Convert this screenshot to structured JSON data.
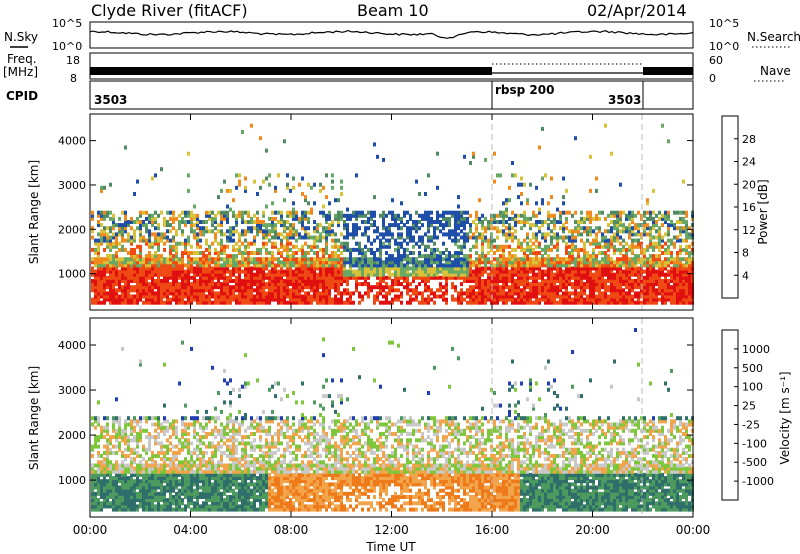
{
  "header": {
    "station": "Clyde River (fitACF)",
    "beam": "Beam 10",
    "date": "02/Apr/2014"
  },
  "panels": {
    "nsky_label": "N.Sky",
    "nsky_ticks": [
      "10^5",
      "10^0"
    ],
    "nsearch_label": "N.Search",
    "nsearch_ticks": [
      "10^5",
      "10^0"
    ],
    "freq_label_line1": "Freq.",
    "freq_label_line2": "[MHz]",
    "freq_ticks": [
      "18",
      "8"
    ],
    "nave_label": "Nave",
    "nave_ticks": [
      "60",
      "0"
    ],
    "cpid_label": "CPID",
    "cpid_segments": [
      {
        "label": "3503",
        "start_hour": 0,
        "end_hour": 16
      },
      {
        "label": "rbsp 200",
        "start_hour": 16,
        "end_hour": 22
      },
      {
        "label": "3503",
        "start_hour": 22,
        "end_hour": 24
      }
    ]
  },
  "chart_data": [
    {
      "type": "heatmap",
      "name": "Power",
      "ylabel": "Slant Range [km]",
      "yticks": [
        "1000",
        "2000",
        "3000",
        "4000"
      ],
      "ylim": [
        180,
        4600
      ],
      "colorbar": {
        "label": "Power [dB]",
        "ticks": [
          "4",
          "8",
          "12",
          "16",
          "20",
          "24",
          "28"
        ],
        "range": [
          0,
          32
        ],
        "colors": [
          "#1b1bd6",
          "#1f4ea8",
          "#4f8a62",
          "#68a865",
          "#d8c23a",
          "#f08a1c",
          "#f04a14",
          "#e01010"
        ]
      }
    },
    {
      "type": "heatmap",
      "name": "Velocity",
      "ylabel": "Slant Range [km]",
      "yticks": [
        "1000",
        "2000",
        "3000",
        "4000"
      ],
      "ylim": [
        180,
        4600
      ],
      "colorbar": {
        "label": "Velocity [m s⁻¹]",
        "ticks": [
          "1000",
          "500",
          "100",
          "25",
          "-25",
          "-100",
          "-500",
          "-1000"
        ],
        "colors": [
          "#1f3fb0",
          "#2f6e6a",
          "#4d9a5e",
          "#7ec63a",
          "#c8c8c8",
          "#f2a44a",
          "#ee7a1a",
          "#e84a14",
          "#e01010"
        ]
      }
    }
  ],
  "xaxis": {
    "label": "Time UT",
    "ticks": [
      "00:00",
      "04:00",
      "08:00",
      "12:00",
      "16:00",
      "20:00",
      "00:00"
    ],
    "range_hours": [
      0,
      24
    ]
  },
  "mode_changes_hours": [
    16,
    21.8
  ]
}
